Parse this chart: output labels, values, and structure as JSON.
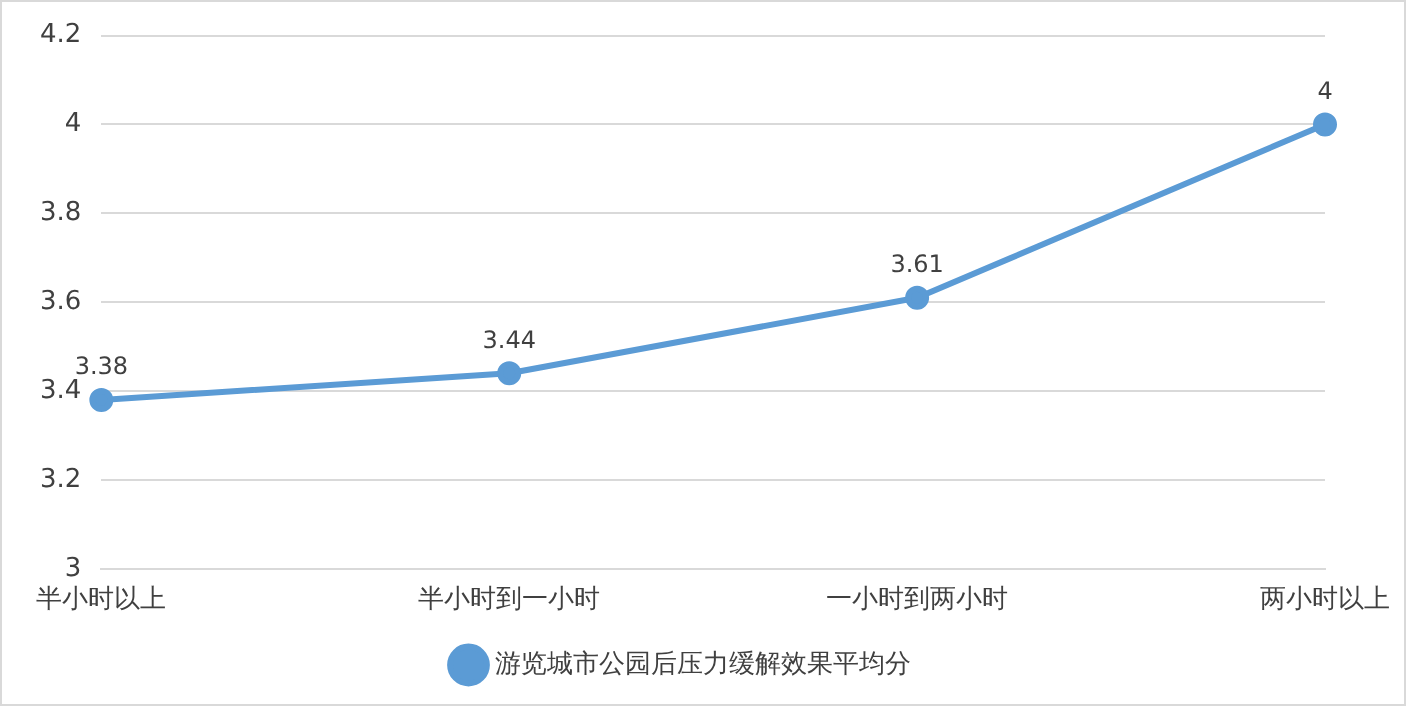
{
  "chart_data": {
    "type": "line",
    "categories": [
      "半小时以上",
      "半小时到一小时",
      "一小时到两小时",
      "两小时以上"
    ],
    "series": [
      {
        "name": "游览城市公园后压力缓解效果平均分",
        "color": "#5b9bd5",
        "values": [
          3.38,
          3.44,
          3.61,
          4
        ]
      }
    ],
    "ylim": [
      3,
      4.2
    ],
    "yticks": [
      3,
      3.2,
      3.4,
      3.6,
      3.8,
      4,
      4.2
    ],
    "grid": "y",
    "legend": "bottom",
    "marker": "circle",
    "line_style": "solid",
    "data_labels": true
  }
}
